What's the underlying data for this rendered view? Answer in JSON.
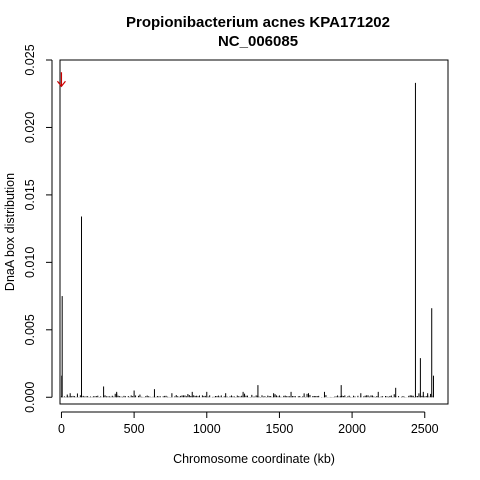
{
  "chart_data": {
    "type": "bar",
    "title": "Propionibacterium acnes KPA171202",
    "subtitle": "NC_006085",
    "xlabel": "Chromosome coordinate (kb)",
    "ylabel": "DnaA box distribution",
    "xlim": [
      -10,
      2660
    ],
    "ylim": [
      -0.0005,
      0.025
    ],
    "x_ticks": [
      0,
      500,
      1000,
      1500,
      2000,
      2500
    ],
    "x_tick_labels": [
      "0",
      "500",
      "1000",
      "1500",
      "2000",
      "2500"
    ],
    "y_ticks": [
      0.0,
      0.005,
      0.01,
      0.015,
      0.02,
      0.025
    ],
    "y_tick_labels": [
      "0.000",
      "0.005",
      "0.010",
      "0.015",
      "0.020",
      "0.025"
    ],
    "grid": false,
    "legend": "none",
    "bar_color": "#000000",
    "marker": {
      "symbol": "arrow-down",
      "x": 0,
      "y": 0.0235,
      "color": "#cc0000"
    },
    "peaks": [
      {
        "x": 2,
        "y": 0.0016
      },
      {
        "x": 5,
        "y": 0.0075
      },
      {
        "x": 40,
        "y": 0.0002
      },
      {
        "x": 60,
        "y": 0.0003
      },
      {
        "x": 138,
        "y": 0.0134
      },
      {
        "x": 290,
        "y": 0.0008
      },
      {
        "x": 380,
        "y": 0.0004
      },
      {
        "x": 500,
        "y": 0.0005
      },
      {
        "x": 640,
        "y": 0.0006
      },
      {
        "x": 760,
        "y": 0.0003
      },
      {
        "x": 900,
        "y": 0.0004
      },
      {
        "x": 1000,
        "y": 0.0004
      },
      {
        "x": 1130,
        "y": 0.0003
      },
      {
        "x": 1250,
        "y": 0.0004
      },
      {
        "x": 1352,
        "y": 0.0009
      },
      {
        "x": 1460,
        "y": 0.0003
      },
      {
        "x": 1580,
        "y": 0.0004
      },
      {
        "x": 1700,
        "y": 0.0003
      },
      {
        "x": 1810,
        "y": 0.0004
      },
      {
        "x": 1925,
        "y": 0.0009
      },
      {
        "x": 2060,
        "y": 0.0003
      },
      {
        "x": 2180,
        "y": 0.0004
      },
      {
        "x": 2300,
        "y": 0.0007
      },
      {
        "x": 2420,
        "y": 0.0001
      },
      {
        "x": 2436,
        "y": 0.0233
      },
      {
        "x": 2470,
        "y": 0.0029
      },
      {
        "x": 2490,
        "y": 0.0004
      },
      {
        "x": 2520,
        "y": 0.0003
      },
      {
        "x": 2548,
        "y": 0.0066
      },
      {
        "x": 2560,
        "y": 0.0016
      }
    ],
    "baseline_noise": {
      "x_start": 0,
      "x_end": 2560,
      "step": 10,
      "y_max": 0.0003
    }
  }
}
